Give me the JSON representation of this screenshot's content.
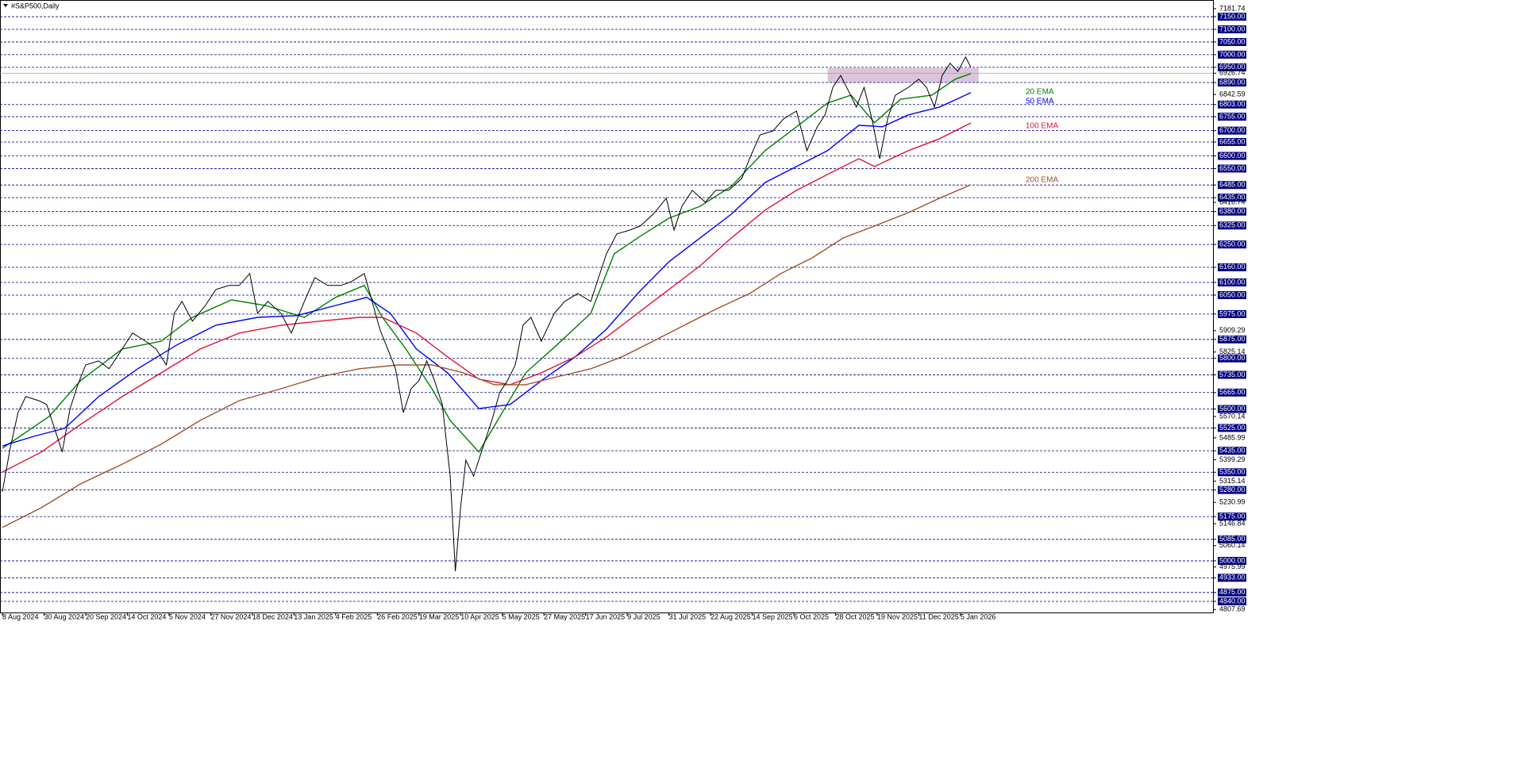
{
  "chart_data": {
    "type": "line",
    "title": "#S&P500,Daily",
    "xlim": [
      0,
      465
    ],
    "xticks": [
      {
        "value": 0,
        "label": "8 Aug 2024"
      },
      {
        "value": 16,
        "label": "30 Aug 2024"
      },
      {
        "value": 32,
        "label": "20 Sep 2024"
      },
      {
        "value": 48,
        "label": "14 Oct 2024"
      },
      {
        "value": 64,
        "label": "5 Nov 2024"
      },
      {
        "value": 80,
        "label": "27 Nov 2024"
      },
      {
        "value": 96,
        "label": "18 Dec 2024"
      },
      {
        "value": 112,
        "label": "13 Jan 2025"
      },
      {
        "value": 128,
        "label": "4 Feb 2025"
      },
      {
        "value": 144,
        "label": "26 Feb 2025"
      },
      {
        "value": 160,
        "label": "19 Mar 2025"
      },
      {
        "value": 176,
        "label": "10 Apr 2025"
      },
      {
        "value": 192,
        "label": "5 May 2025"
      },
      {
        "value": 208,
        "label": "27 May 2025"
      },
      {
        "value": 224,
        "label": "17 Jun 2025"
      },
      {
        "value": 240,
        "label": "9 Jul 2025"
      },
      {
        "value": 256,
        "label": "31 Jul 2025"
      },
      {
        "value": 272,
        "label": "22 Aug 2025"
      },
      {
        "value": 288,
        "label": "14 Sep 2025"
      },
      {
        "value": 304,
        "label": "6 Oct 2025"
      },
      {
        "value": 320,
        "label": "28 Oct 2025"
      },
      {
        "value": 336,
        "label": "19 Nov 2025"
      },
      {
        "value": 352,
        "label": "11 Dec 2025"
      },
      {
        "value": 368,
        "label": "5 Jan 2026"
      }
    ],
    "ylim": [
      4796,
      7216
    ],
    "yticks": [
      {
        "value": 7150,
        "label": "7150.00"
      },
      {
        "value": 7100,
        "label": "7100.00"
      },
      {
        "value": 7050,
        "label": "7050.00"
      },
      {
        "value": 7000,
        "label": "7000.00"
      },
      {
        "value": 6950,
        "label": "6950.00"
      },
      {
        "value": 6890,
        "label": "6890.00"
      },
      {
        "value": 6803,
        "label": "6803.00"
      },
      {
        "value": 6755,
        "label": "6755.00"
      },
      {
        "value": 6700,
        "label": "6700.00"
      },
      {
        "value": 6655,
        "label": "6655.00"
      },
      {
        "value": 6600,
        "label": "6600.00"
      },
      {
        "value": 6550,
        "label": "6550.00"
      },
      {
        "value": 6485,
        "label": "6485.00"
      },
      {
        "value": 6435,
        "label": "6435.00"
      },
      {
        "value": 6380,
        "label": "6380.00"
      },
      {
        "value": 6325,
        "label": "6325.00"
      },
      {
        "value": 6250,
        "label": "6250.00"
      },
      {
        "value": 6160,
        "label": "6160.00"
      },
      {
        "value": 6100,
        "label": "6100.00"
      },
      {
        "value": 6050,
        "label": "6050.00"
      },
      {
        "value": 5975,
        "label": "5975.00"
      },
      {
        "value": 5875,
        "label": "5875.00"
      },
      {
        "value": 5800,
        "label": "5800.00"
      },
      {
        "value": 5735,
        "label": "5735.00"
      },
      {
        "value": 5665,
        "label": "5665.00"
      },
      {
        "value": 5600,
        "label": "5600.00"
      },
      {
        "value": 5525,
        "label": "5525.00"
      },
      {
        "value": 5435,
        "label": "5435.00"
      },
      {
        "value": 5350,
        "label": "5350.00"
      },
      {
        "value": 5280,
        "label": "5280.00"
      },
      {
        "value": 5175,
        "label": "5175.00"
      },
      {
        "value": 5085,
        "label": "5085.00"
      },
      {
        "value": 5000,
        "label": "5000.00"
      },
      {
        "value": 4933,
        "label": "4933.00"
      },
      {
        "value": 4875,
        "label": "4875.00"
      },
      {
        "value": 4840,
        "label": "4840.00"
      }
    ],
    "scale_labels": [
      {
        "value": 7181.74,
        "label": "7181.74"
      },
      {
        "value": 6926.74,
        "label": "6926.74"
      },
      {
        "value": 6842.59,
        "label": "6842.59"
      },
      {
        "value": 6416.74,
        "label": "6416.74"
      },
      {
        "value": 5909.29,
        "label": "5909.29"
      },
      {
        "value": 5825.14,
        "label": "5825.14"
      },
      {
        "value": 5570.14,
        "label": "5570.14"
      },
      {
        "value": 5485.99,
        "label": "5485.99"
      },
      {
        "value": 5399.29,
        "label": "5399.29"
      },
      {
        "value": 5315.14,
        "label": "5315.14"
      },
      {
        "value": 5230.99,
        "label": "5230.99"
      },
      {
        "value": 5146.84,
        "label": "5146.84"
      },
      {
        "value": 5060.14,
        "label": "5060.14"
      },
      {
        "value": 4975.99,
        "label": "4975.99"
      },
      {
        "value": 4807.69,
        "label": "4807.69"
      }
    ],
    "last_price": 6926.74,
    "grid": true,
    "zone": {
      "x": [
        317,
        375
      ],
      "y": [
        6890,
        6947
      ],
      "color": "#d8bfd8"
    },
    "price": {
      "color": "#000000",
      "x": [
        0,
        3,
        6,
        9,
        14,
        17,
        20,
        23,
        26,
        29,
        32,
        37,
        41,
        46,
        50,
        55,
        59,
        63,
        66,
        69,
        73,
        78,
        82,
        87,
        91,
        95,
        98,
        102,
        107,
        111,
        116,
        120,
        125,
        130,
        134,
        139,
        142,
        145,
        148,
        151,
        154,
        157,
        160,
        163,
        166,
        169,
        172,
        174,
        176,
        178,
        181,
        184,
        188,
        191,
        194,
        197,
        200,
        203,
        207,
        212,
        216,
        221,
        226,
        229,
        232,
        236,
        241,
        245,
        250,
        255,
        258,
        261,
        265,
        270,
        274,
        279,
        284,
        287,
        291,
        296,
        300,
        305,
        309,
        313,
        316,
        319,
        322,
        325,
        328,
        331,
        334,
        337,
        340,
        343,
        348,
        352,
        355,
        358,
        361,
        364,
        367,
        370,
        372
      ],
      "values": [
        5273,
        5445,
        5586,
        5649,
        5633,
        5618,
        5524,
        5430,
        5602,
        5696,
        5774,
        5790,
        5759,
        5837,
        5900,
        5868,
        5837,
        5774,
        5978,
        6025,
        5947,
        6009,
        6072,
        6088,
        6088,
        6135,
        5978,
        6025,
        5978,
        5900,
        6025,
        6119,
        6088,
        6088,
        6103,
        6135,
        6025,
        5915,
        5837,
        5759,
        5586,
        5680,
        5712,
        5790,
        5712,
        5618,
        5335,
        4959,
        5210,
        5398,
        5335,
        5430,
        5555,
        5665,
        5712,
        5774,
        5931,
        5962,
        5868,
        5978,
        6025,
        6056,
        6025,
        6119,
        6213,
        6292,
        6307,
        6323,
        6370,
        6433,
        6307,
        6401,
        6464,
        6417,
        6464,
        6464,
        6511,
        6589,
        6683,
        6699,
        6746,
        6777,
        6621,
        6715,
        6762,
        6871,
        6918,
        6856,
        6793,
        6871,
        6746,
        6589,
        6746,
        6840,
        6871,
        6903,
        6871,
        6793,
        6918,
        6966,
        6934,
        6991,
        6950
      ]
    },
    "series": [
      {
        "name": "20 EMA",
        "color": "#008000",
        "x": [
          0,
          18,
          30,
          46,
          61,
          73,
          88,
          101,
          116,
          128,
          139,
          146,
          155,
          165,
          172,
          183,
          192,
          201,
          213,
          226,
          235,
          244,
          256,
          268,
          280,
          293,
          305,
          317,
          326,
          335,
          345,
          357,
          366,
          372
        ],
        "values": [
          5445,
          5571,
          5712,
          5837,
          5868,
          5962,
          6031,
          6009,
          5962,
          6041,
          6088,
          5962,
          5837,
          5680,
          5555,
          5430,
          5586,
          5743,
          5853,
          5978,
          6213,
          6276,
          6354,
          6401,
          6480,
          6621,
          6715,
          6809,
          6840,
          6731,
          6824,
          6840,
          6903,
          6925
        ]
      },
      {
        "name": "50 EMA",
        "color": "#0000ff",
        "x": [
          0,
          12,
          24,
          37,
          52,
          67,
          82,
          98,
          113,
          128,
          140,
          149,
          159,
          171,
          183,
          195,
          207,
          220,
          232,
          244,
          256,
          268,
          280,
          293,
          305,
          317,
          329,
          338,
          348,
          360,
          372
        ],
        "values": [
          5454,
          5492,
          5524,
          5649,
          5759,
          5853,
          5931,
          5962,
          5969,
          6009,
          6041,
          5978,
          5837,
          5743,
          5602,
          5618,
          5712,
          5806,
          5915,
          6056,
          6182,
          6276,
          6370,
          6495,
          6558,
          6621,
          6721,
          6715,
          6762,
          6793,
          6850
        ]
      },
      {
        "name": "100 EMA",
        "color": "#dc143c",
        "x": [
          0,
          15,
          30,
          46,
          61,
          76,
          91,
          107,
          122,
          137,
          146,
          159,
          171,
          183,
          195,
          207,
          220,
          232,
          244,
          256,
          268,
          280,
          293,
          305,
          317,
          329,
          335,
          348,
          360,
          372
        ],
        "values": [
          5351,
          5430,
          5539,
          5649,
          5743,
          5837,
          5900,
          5931,
          5947,
          5962,
          5962,
          5900,
          5806,
          5718,
          5696,
          5743,
          5806,
          5884,
          5978,
          6072,
          6166,
          6276,
          6386,
          6464,
          6527,
          6589,
          6558,
          6621,
          6668,
          6730
        ]
      },
      {
        "name": "200 EMA",
        "color": "#a0522d",
        "x": [
          0,
          15,
          30,
          46,
          61,
          76,
          91,
          107,
          122,
          137,
          152,
          165,
          177,
          189,
          201,
          213,
          226,
          238,
          250,
          262,
          274,
          287,
          299,
          311,
          323,
          335,
          348,
          360,
          372
        ],
        "values": [
          5132,
          5210,
          5304,
          5382,
          5461,
          5555,
          5633,
          5680,
          5727,
          5759,
          5774,
          5774,
          5743,
          5696,
          5696,
          5727,
          5759,
          5806,
          5868,
          5931,
          5994,
          6056,
          6135,
          6197,
          6276,
          6323,
          6376,
          6433,
          6486
        ]
      }
    ]
  }
}
